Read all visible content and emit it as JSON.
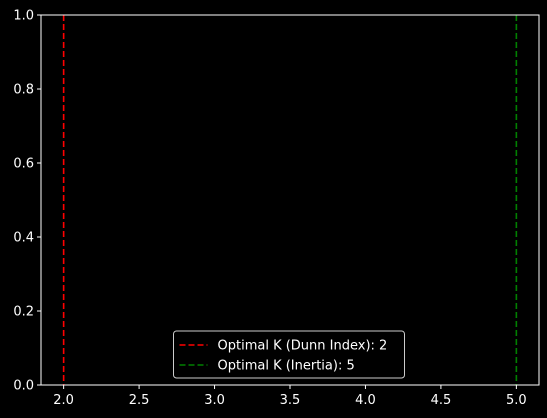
{
  "chart_data": {
    "type": "line",
    "title": "",
    "xlabel": "",
    "ylabel": "",
    "xlim": [
      1.85,
      5.15
    ],
    "ylim": [
      0,
      1
    ],
    "grid": false,
    "background": "#000000",
    "axis_color": "#ffffff",
    "x_ticks": [
      "2.0",
      "2.5",
      "3.0",
      "3.5",
      "4.0",
      "4.5",
      "5.0"
    ],
    "y_ticks": [
      "0.0",
      "0.2",
      "0.4",
      "0.6",
      "0.8",
      "1.0"
    ],
    "series": [
      {
        "name": "Optimal K (Dunn Index): 2",
        "x": 2,
        "style": "dashed",
        "color": "#ff0000"
      },
      {
        "name": "Optimal K (Inertia): 5",
        "x": 5,
        "style": "dashed",
        "color": "#008000"
      }
    ],
    "legend": {
      "placement": "lower center"
    }
  }
}
